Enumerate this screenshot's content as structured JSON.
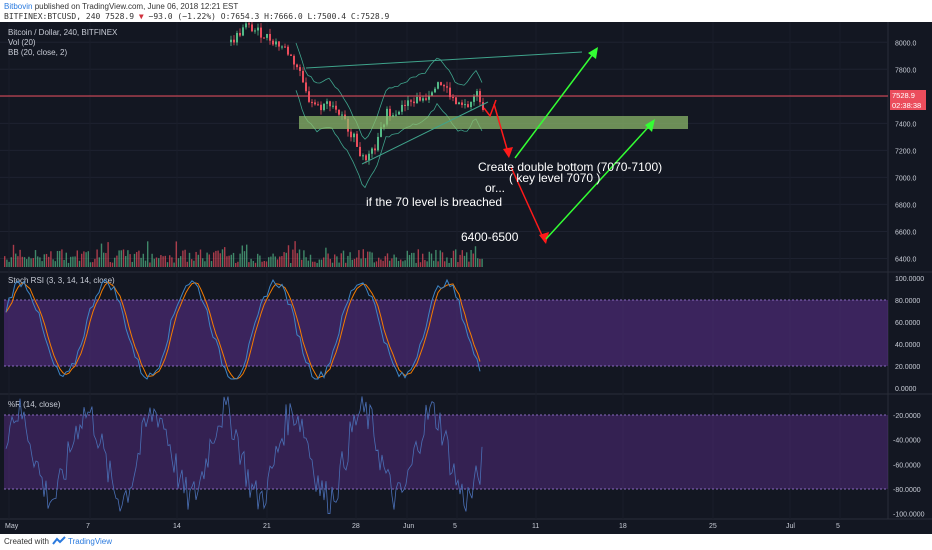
{
  "header": {
    "author": "Bitbovin",
    "published": "published on TradingView.com, June 06, 2018 12:21 EST",
    "symbol_line_prefix": "BITFINEX:BTCUSD, 240 7528.9",
    "change_arrow": "▼",
    "change_text": "−93.0 (−1.22%)",
    "ohlc_text": "O:7654.3 H:7666.0 L:7500.4 C:7528.9"
  },
  "legend": {
    "title": "Bitcoin / Dollar, 240, BITFINEX",
    "vol": "Vol (20)",
    "bb": "BB (20, close, 2)",
    "stoch": "Stoch RSI (3, 3, 14, 14, close)",
    "wr": "%R (14, close)"
  },
  "price_axis": {
    "labels": [
      "8000.0",
      "7800.0",
      "7600.0",
      "7400.0",
      "7200.0",
      "7000.0",
      "6800.0",
      "6600.0",
      "6400.0"
    ],
    "current_price": "7528.9",
    "countdown": "02:38:38"
  },
  "stoch_axis": {
    "labels": [
      "100.0000",
      "80.0000",
      "60.0000",
      "40.0000",
      "20.0000",
      "0.0000"
    ]
  },
  "wr_axis": {
    "labels": [
      "-20.0000",
      "-40.0000",
      "-60.0000",
      "-80.0000",
      "-100.0000"
    ]
  },
  "time_axis": {
    "labels": [
      "May",
      "7",
      "14",
      "21",
      "28",
      "Jun",
      "5",
      "11",
      "18",
      "25",
      "Jul",
      "5"
    ]
  },
  "annotations": {
    "double_bottom": "Create double bottom (7070-7100)",
    "key_level": "( key level 7070 )",
    "or": "or...",
    "breached": "if the 70 level is breached",
    "target": "6400-6500"
  },
  "colors": {
    "background": "#131722",
    "up": "#53b987",
    "down": "#eb4d5c",
    "support_zone": "#8fbc6c",
    "arrow_green": "#33ff33",
    "arrow_red": "#ff1a1a",
    "stoch_k": "#3d85c6",
    "stoch_d": "#f57c00",
    "stoch_band": "#5d2f8e",
    "wr_line": "#4a6fb5",
    "bb_line": "#3fa48c"
  },
  "footer": {
    "created": "Created with",
    "brand": "TradingView"
  },
  "chart_data": [
    {
      "type": "candlestick",
      "title": "Bitcoin / Dollar, 240, BITFINEX",
      "ylim": [
        6300,
        8150
      ],
      "last_close": 7528.9,
      "support_zone": [
        7330,
        7380
      ],
      "key_level": 7070,
      "target_range": [
        6400,
        6500
      ],
      "approximate_path": [
        {
          "x": "May 23",
          "y": 7800
        },
        {
          "x": "May 24",
          "y": 7550
        },
        {
          "x": "May 26",
          "y": 7450
        },
        {
          "x": "May 28",
          "y": 7250
        },
        {
          "x": "May 29",
          "y": 7100
        },
        {
          "x": "May 31",
          "y": 7480
        },
        {
          "x": "Jun 2",
          "y": 7600
        },
        {
          "x": "Jun 3",
          "y": 7720
        },
        {
          "x": "Jun 4",
          "y": 7500
        },
        {
          "x": "Jun 5",
          "y": 7600
        },
        {
          "x": "Jun 6",
          "y": 7528.9
        }
      ]
    },
    {
      "type": "line",
      "title": "Stoch RSI (3, 3, 14, 14, close)",
      "ylim": [
        0,
        100
      ],
      "bands": [
        20,
        80
      ]
    },
    {
      "type": "line",
      "title": "%R (14, close)",
      "ylim": [
        -100,
        0
      ],
      "bands": [
        -80,
        -20
      ]
    }
  ]
}
